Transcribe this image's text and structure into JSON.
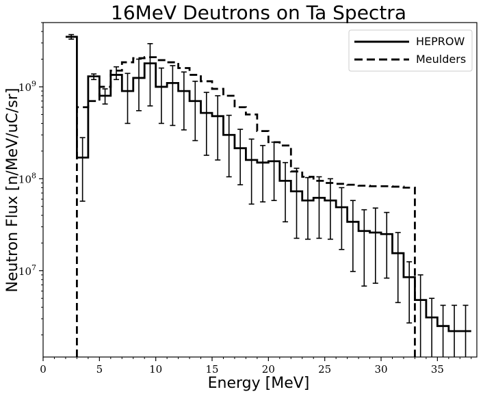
{
  "chart_data": {
    "type": "line",
    "title": "16MeV Deutrons on Ta Spectra",
    "xlabel": "Energy [MeV]",
    "ylabel": "Neutron Flux [n/MeV/uC/sr]",
    "xlim": [
      0,
      38.5
    ],
    "ylim": [
      1150000.0,
      5000000000.0
    ],
    "yscale": "log",
    "grid": false,
    "legend_position": "top-right",
    "x_ticks": [
      {
        "value": 0,
        "label": "0"
      },
      {
        "value": 5,
        "label": "5"
      },
      {
        "value": 10,
        "label": "10"
      },
      {
        "value": 15,
        "label": "15"
      },
      {
        "value": 20,
        "label": "20"
      },
      {
        "value": 25,
        "label": "25"
      },
      {
        "value": 30,
        "label": "30"
      },
      {
        "value": 35,
        "label": "35"
      }
    ],
    "y_ticks": [
      {
        "value": 10000000,
        "base": "10",
        "exp": "7"
      },
      {
        "value": 100000000,
        "base": "10",
        "exp": "8"
      },
      {
        "value": 1000000000,
        "base": "10",
        "exp": "9"
      }
    ],
    "series": [
      {
        "name": "HEPROW",
        "style": "solid",
        "color": "#000000",
        "bin_edges": [
          2,
          3,
          4,
          5,
          6,
          7,
          8,
          9,
          10,
          11,
          12,
          13,
          14,
          15,
          16,
          17,
          18,
          19,
          20,
          21,
          22,
          23,
          24,
          25,
          26,
          27,
          28,
          29,
          30,
          31,
          32,
          33,
          34,
          35,
          36,
          37,
          38
        ],
        "values": [
          3500000000.0,
          170000000.0,
          1300000000.0,
          800000000.0,
          1350000000.0,
          900000000.0,
          1250000000.0,
          1800000000.0,
          1000000000.0,
          1100000000.0,
          900000000.0,
          700000000.0,
          520000000.0,
          480000000.0,
          300000000.0,
          215000000.0,
          160000000.0,
          150000000.0,
          155000000.0,
          95000000.0,
          73000000.0,
          58000000.0,
          62000000.0,
          58000000.0,
          49000000.0,
          34000000.0,
          27000000.0,
          26000000.0,
          25000000.0,
          15500000.0,
          8500000.0,
          4800000.0,
          3100000.0,
          2500000.0,
          2200000.0,
          2200000.0
        ],
        "errors_low": [
          3300000000.0,
          57000000.0,
          1200000000.0,
          650000000.0,
          1200000000.0,
          400000000.0,
          550000000.0,
          620000000.0,
          400000000.0,
          380000000.0,
          340000000.0,
          260000000.0,
          180000000.0,
          160000000.0,
          105000000.0,
          86000000.0,
          53000000.0,
          56000000.0,
          58000000.0,
          34000000.0,
          22500000.0,
          22000000.0,
          22500000.0,
          22000000.0,
          17000000.0,
          9800000.0,
          6800000.0,
          7300000.0,
          8300000.0,
          4500000.0,
          2700000.0,
          0,
          0,
          0,
          0,
          0
        ],
        "errors_high": [
          3700000000.0,
          280000000.0,
          1380000000.0,
          950000000.0,
          1650000000.0,
          1400000000.0,
          2000000000.0,
          2950000000.0,
          1600000000.0,
          1700000000.0,
          1450000000.0,
          1150000000.0,
          870000000.0,
          800000000.0,
          490000000.0,
          345000000.0,
          270000000.0,
          230000000.0,
          250000000.0,
          150000000.0,
          130000000.0,
          103000000.0,
          105000000.0,
          100000000.0,
          80000000.0,
          58000000.0,
          46000000.0,
          48000000.0,
          43000000.0,
          26000000.0,
          12500000.0,
          9000000.0,
          5000000.0,
          4200000.0,
          4200000.0,
          4200000.0
        ]
      },
      {
        "name": "Meulders",
        "style": "dashed",
        "color": "#000000",
        "bin_edges": [
          3,
          4,
          5,
          6,
          7,
          8,
          9,
          10,
          11,
          12,
          13,
          14,
          15,
          16,
          17,
          18,
          19,
          20,
          21,
          22,
          23,
          24,
          25,
          26,
          27,
          28,
          29,
          30,
          31,
          32,
          33
        ],
        "values": [
          600000000.0,
          700000000.0,
          1000000000.0,
          1500000000.0,
          1850000000.0,
          2050000000.0,
          2100000000.0,
          1950000000.0,
          1850000000.0,
          1600000000.0,
          1350000000.0,
          1150000000.0,
          950000000.0,
          800000000.0,
          600000000.0,
          500000000.0,
          330000000.0,
          250000000.0,
          230000000.0,
          120000000.0,
          105000000.0,
          95000000.0,
          90000000.0,
          88000000.0,
          86000000.0,
          84000000.0,
          83000000.0,
          83000000.0,
          82000000.0,
          80000000.0
        ]
      }
    ]
  }
}
